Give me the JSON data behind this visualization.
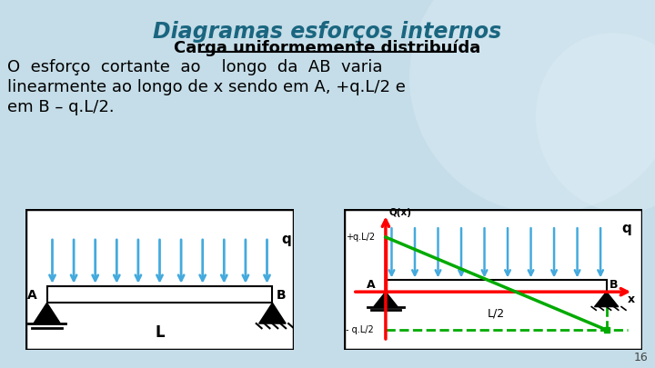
{
  "bg_color": "#c5dde8",
  "title": "Diagramas esforços internos",
  "subtitle": "Carga uniformemente distribuída",
  "line1": "O  esforço  cortante  ao    longo  da  AB  varia",
  "line2": "linearmente ao longo de x sendo em A, +q.L/2 e",
  "line3": "em B – q.L/2.",
  "page_number": "16",
  "arrow_color": "#44aadd",
  "beam_color": "#000000",
  "axis_color": "#ff0000",
  "shear_color": "#00aa00",
  "title_color": "#1a6680",
  "text_color": "#000000"
}
